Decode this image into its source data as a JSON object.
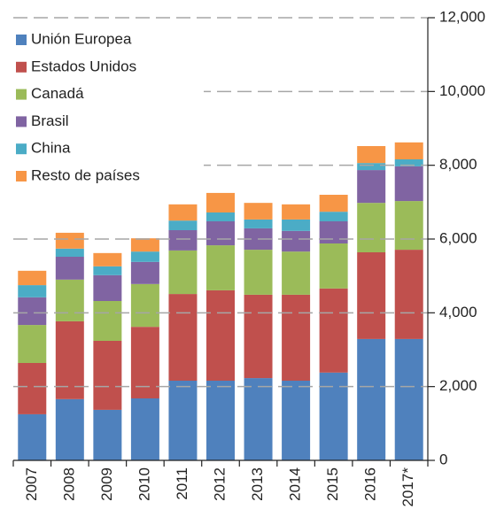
{
  "chart_data": {
    "type": "stacked_bar",
    "categories": [
      "2007",
      "2008",
      "2009",
      "2010",
      "2011",
      "2012",
      "2013",
      "2014",
      "2015",
      "2016",
      "2017*"
    ],
    "series": [
      {
        "name": "Unión Europea",
        "color": "#4f81bd",
        "values": [
          1250,
          1660,
          1370,
          1680,
          2160,
          2160,
          2230,
          2160,
          2380,
          3290,
          3290
        ]
      },
      {
        "name": "Estados Unidos",
        "color": "#c0504d",
        "values": [
          1390,
          2110,
          1870,
          1940,
          2350,
          2450,
          2260,
          2330,
          2280,
          2350,
          2420
        ]
      },
      {
        "name": "Canadá",
        "color": "#9bbb59",
        "values": [
          1030,
          1130,
          1080,
          1160,
          1180,
          1220,
          1220,
          1170,
          1220,
          1340,
          1320
        ]
      },
      {
        "name": "Brasil",
        "color": "#8064a2",
        "values": [
          750,
          620,
          700,
          600,
          550,
          650,
          580,
          560,
          600,
          890,
          940
        ]
      },
      {
        "name": "China",
        "color": "#4bacc6",
        "values": [
          330,
          220,
          240,
          280,
          260,
          240,
          240,
          310,
          260,
          190,
          190
        ]
      },
      {
        "name": "Resto de países",
        "color": "#f79646",
        "values": [
          390,
          430,
          360,
          360,
          440,
          530,
          450,
          410,
          460,
          460,
          460
        ]
      }
    ],
    "ylim": [
      0,
      12000
    ],
    "yticks": [
      0,
      {
        "value": 2000,
        "label": "2,000"
      },
      {
        "value": 4000,
        "label": "4,000"
      },
      {
        "value": 6000,
        "label": "6,000"
      },
      {
        "value": 8000,
        "label": "8,000"
      },
      {
        "value": 10000,
        "label": "10,000"
      },
      {
        "value": 12000,
        "label": "12,000"
      }
    ],
    "grid": true,
    "legend": "top-left"
  }
}
